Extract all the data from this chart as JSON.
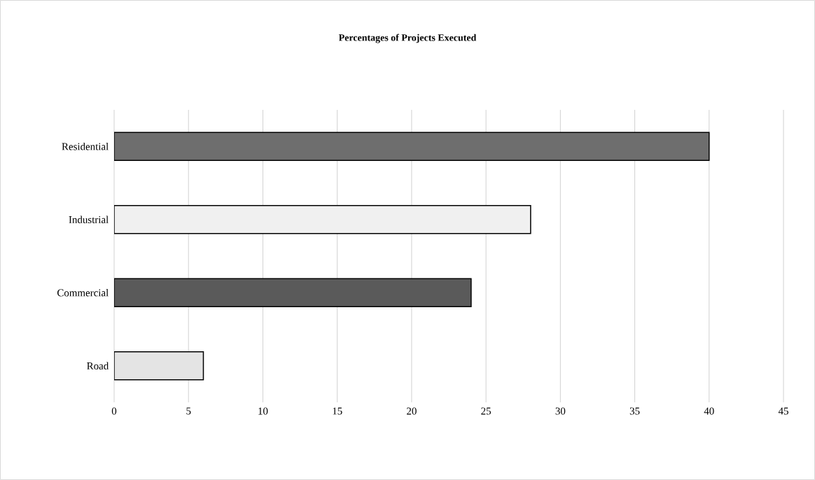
{
  "chart_data": {
    "type": "bar",
    "orientation": "horizontal",
    "title": "Percentages of Projects Executed",
    "categories": [
      "Residential",
      "Industrial",
      "Commercial",
      "Road"
    ],
    "values": [
      40,
      28,
      24,
      6
    ],
    "colors": [
      "#6e6e6e",
      "#f0f0f0",
      "#5a5a5a",
      "#e4e4e4"
    ],
    "xlim": [
      0,
      45
    ],
    "xticks": [
      0,
      5,
      10,
      15,
      20,
      25,
      30,
      35,
      40,
      45
    ],
    "grid": "x"
  }
}
